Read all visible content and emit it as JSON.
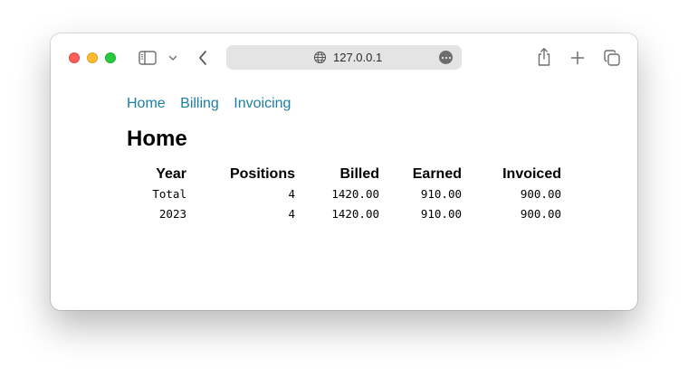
{
  "browser": {
    "url": "127.0.0.1"
  },
  "nav": {
    "links": [
      {
        "label": "Home"
      },
      {
        "label": "Billing"
      },
      {
        "label": "Invoicing"
      }
    ]
  },
  "page": {
    "title": "Home"
  },
  "table": {
    "headers": [
      "Year",
      "Positions",
      "Billed",
      "Earned",
      "Invoiced"
    ],
    "rows": [
      [
        "Total",
        "4",
        "1420.00",
        "910.00",
        "900.00"
      ],
      [
        "2023",
        "4",
        "1420.00",
        "910.00",
        "900.00"
      ]
    ]
  },
  "colors": {
    "link": "#1a7fa3",
    "traffic_red": "#ff5f57",
    "traffic_yellow": "#febc2e",
    "traffic_green": "#28c840"
  },
  "icons": [
    "sidebar-icon",
    "chevron-down-icon",
    "back-arrow-icon",
    "globe-icon",
    "more-icon",
    "share-icon",
    "plus-icon",
    "tabs-overview-icon"
  ]
}
